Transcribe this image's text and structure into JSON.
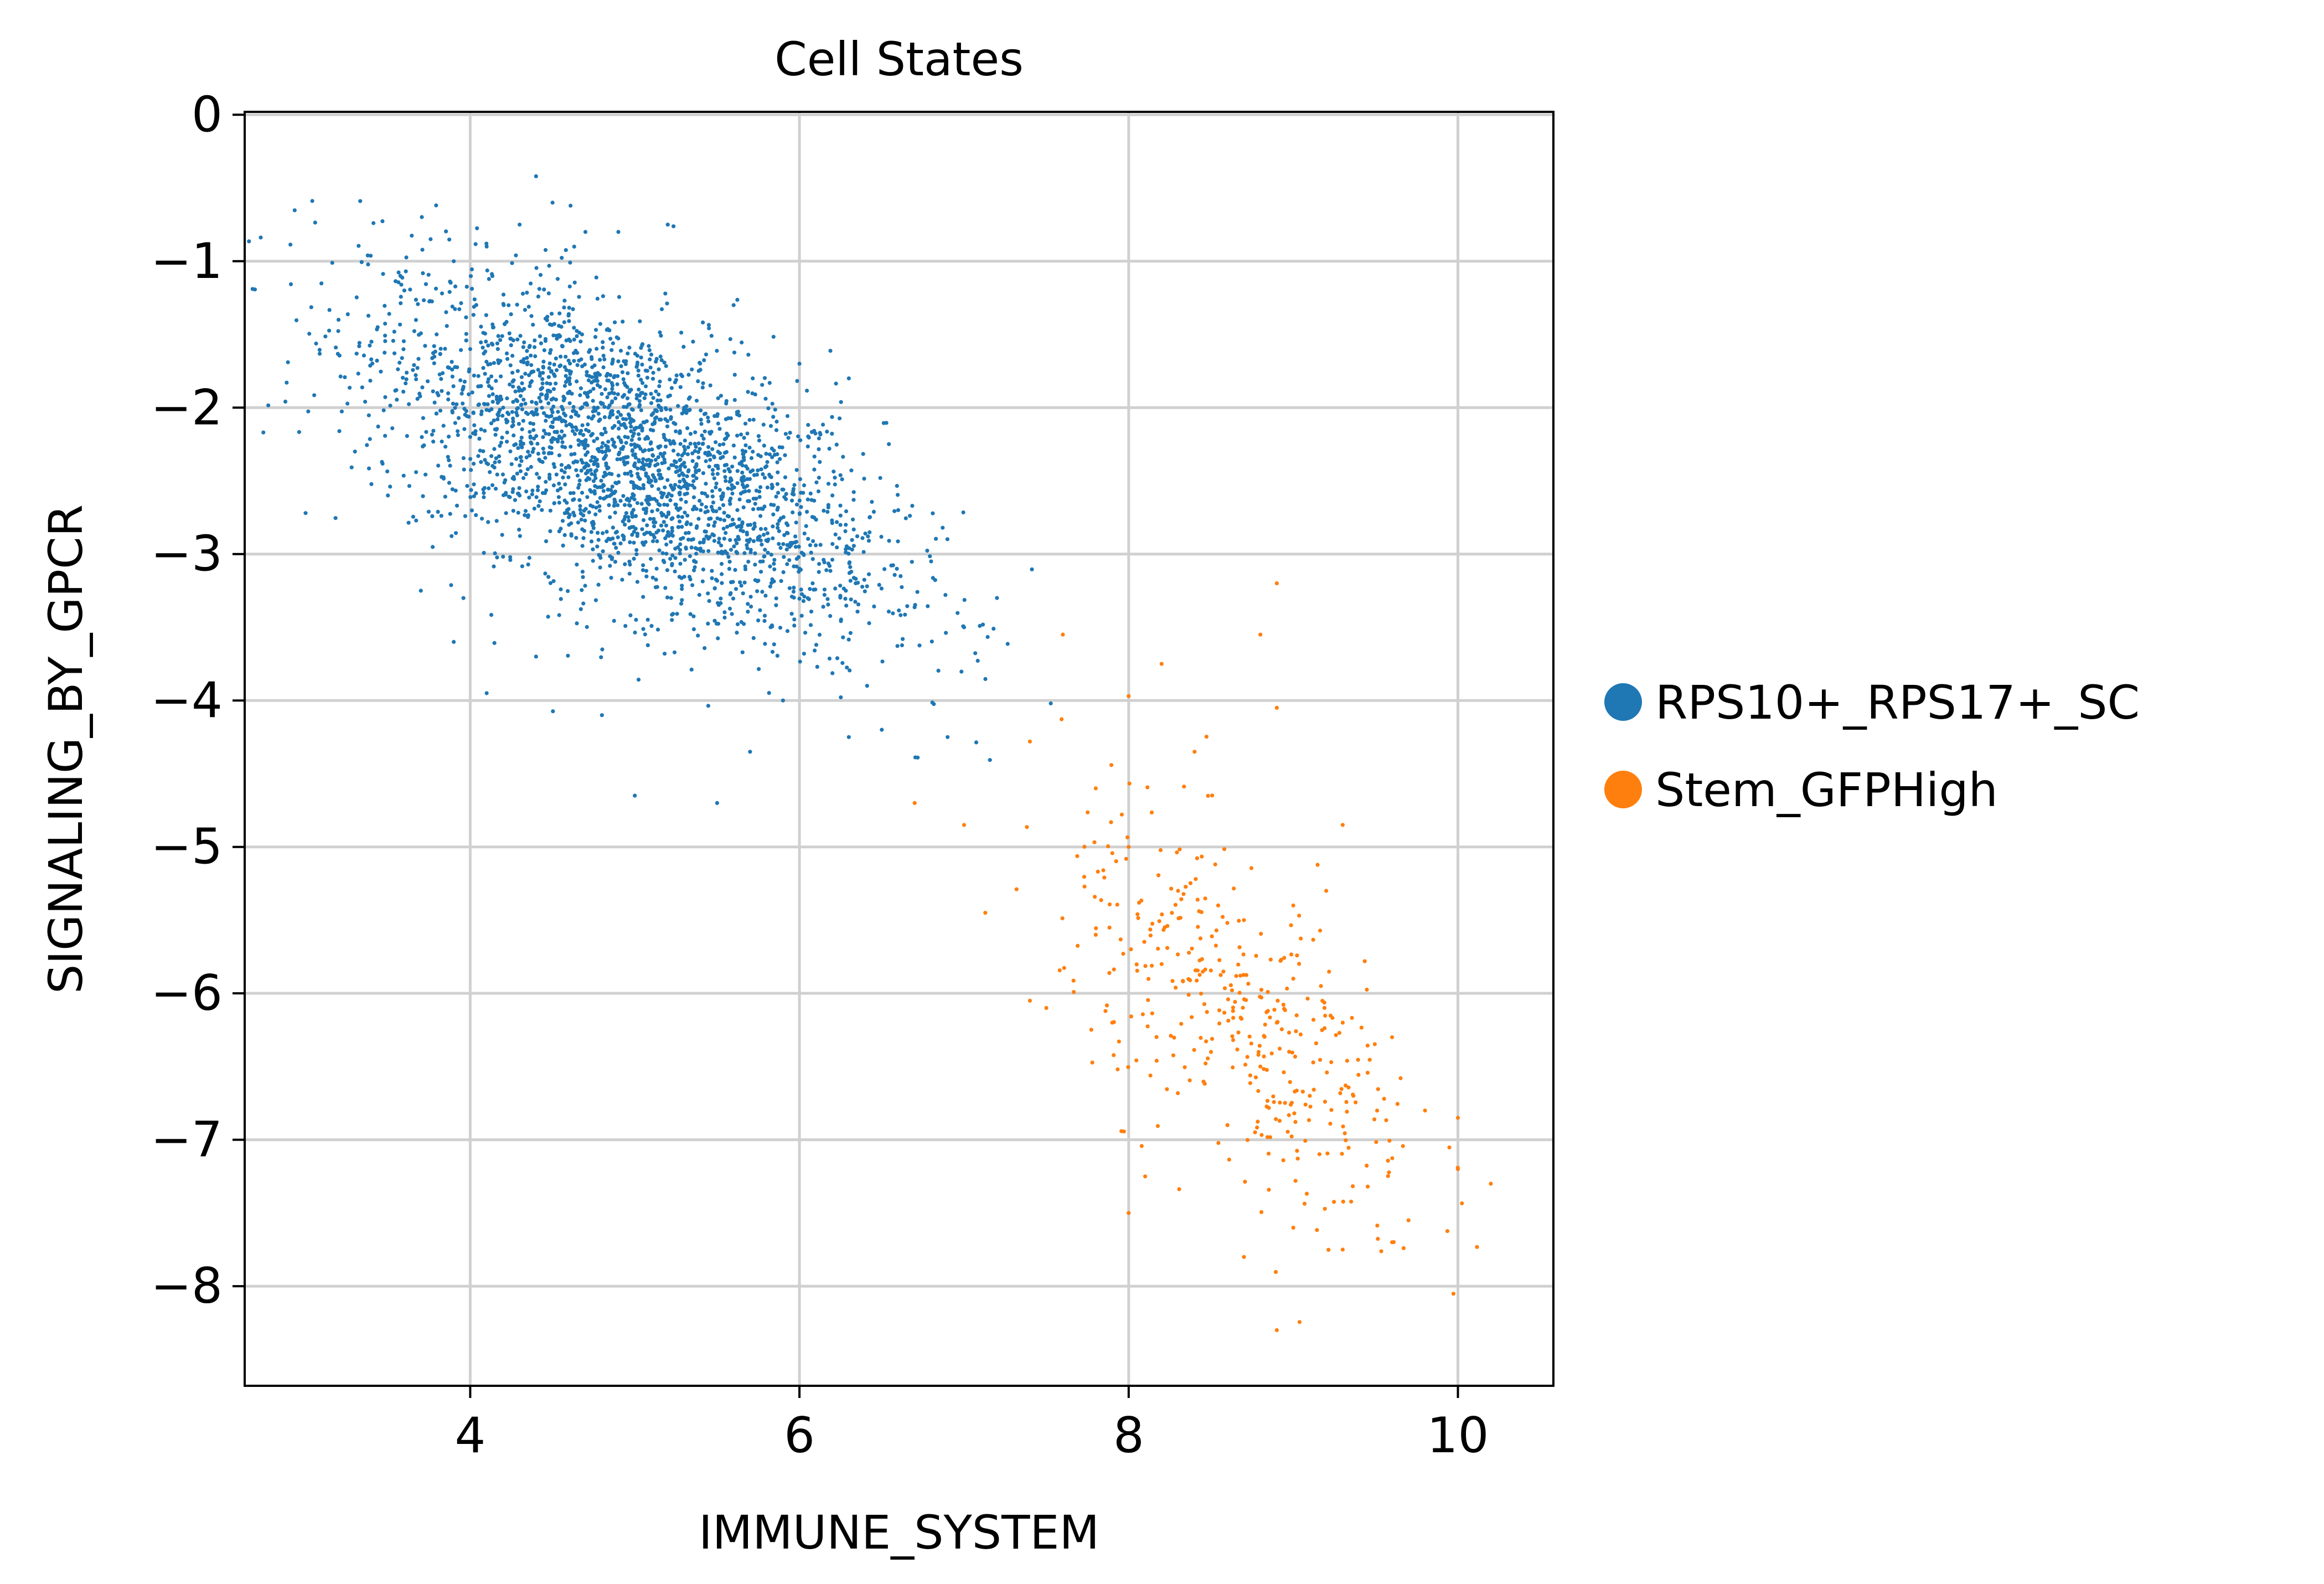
{
  "chart_data": {
    "type": "scatter",
    "title": "Cell States",
    "xlabel": "IMMUNE_SYSTEM",
    "ylabel": "SIGNALING_BY_GPCR",
    "xlim": [
      2.63,
      10.58
    ],
    "ylim": [
      -8.68,
      0.02
    ],
    "xticks": [
      4,
      6,
      8,
      10
    ],
    "yticks": [
      0,
      -1,
      -2,
      -3,
      -4,
      -5,
      -6,
      -7,
      -8
    ],
    "xtick_labels": [
      "4",
      "6",
      "8",
      "10"
    ],
    "ytick_labels": [
      "0",
      "−1",
      "−2",
      "−3",
      "−4",
      "−5",
      "−6",
      "−7",
      "−8"
    ],
    "grid": true,
    "legend_position": "outside-right",
    "series": [
      {
        "name": "RPS10+_RPS17+_SC",
        "color": "#1f77b4",
        "approx_count": 3000,
        "points": [
          [
            4.5,
            -0.6
          ],
          [
            4.7,
            -0.8
          ],
          [
            4.1,
            -0.9
          ],
          [
            4.3,
            -0.75
          ],
          [
            3.9,
            -1.0
          ],
          [
            4.4,
            -0.42
          ],
          [
            3.2,
            -1.4
          ],
          [
            3.4,
            -1.55
          ],
          [
            3.6,
            -1.2
          ],
          [
            3.3,
            -2.3
          ],
          [
            3.0,
            -2.72
          ],
          [
            3.5,
            -2.6
          ],
          [
            3.7,
            -3.25
          ],
          [
            3.9,
            -3.6
          ],
          [
            4.1,
            -3.95
          ],
          [
            4.4,
            -3.7
          ],
          [
            4.8,
            -4.1
          ],
          [
            5.0,
            -4.65
          ],
          [
            5.5,
            -4.7
          ],
          [
            5.7,
            -4.35
          ],
          [
            5.9,
            -4.0
          ],
          [
            6.3,
            -4.25
          ],
          [
            6.5,
            -4.2
          ],
          [
            6.9,
            -4.25
          ],
          [
            7.0,
            -3.5
          ],
          [
            7.2,
            -3.3
          ],
          [
            6.8,
            -3.05
          ],
          [
            6.6,
            -2.7
          ],
          [
            6.3,
            -1.8
          ],
          [
            6.0,
            -1.7
          ],
          [
            5.2,
            -0.75
          ],
          [
            5.6,
            -1.3
          ],
          [
            4.9,
            -0.8
          ],
          [
            4.0,
            -1.6
          ],
          [
            4.2,
            -2.0
          ],
          [
            4.5,
            -2.1
          ],
          [
            4.8,
            -2.3
          ],
          [
            5.1,
            -2.5
          ],
          [
            5.4,
            -2.7
          ],
          [
            5.7,
            -2.9
          ],
          [
            6.0,
            -3.1
          ],
          [
            4.3,
            -2.6
          ],
          [
            4.6,
            -2.8
          ],
          [
            4.0,
            -2.2
          ],
          [
            3.8,
            -1.9
          ],
          [
            5.3,
            -2.0
          ],
          [
            5.8,
            -2.4
          ],
          [
            6.2,
            -2.6
          ]
        ]
      },
      {
        "name": "Stem_GFPHigh",
        "color": "#ff7f0e",
        "approx_count": 400,
        "points": [
          [
            7.6,
            -3.55
          ],
          [
            8.8,
            -3.55
          ],
          [
            8.9,
            -3.2
          ],
          [
            8.9,
            -4.05
          ],
          [
            8.2,
            -3.75
          ],
          [
            8.0,
            -3.97
          ],
          [
            7.4,
            -4.28
          ],
          [
            7.0,
            -4.85
          ],
          [
            6.7,
            -4.7
          ],
          [
            7.8,
            -4.6
          ],
          [
            8.4,
            -4.35
          ],
          [
            9.3,
            -4.85
          ],
          [
            7.4,
            -6.05
          ],
          [
            7.5,
            -6.1
          ],
          [
            7.8,
            -5.6
          ],
          [
            8.0,
            -5.0
          ],
          [
            8.3,
            -5.3
          ],
          [
            8.7,
            -5.5
          ],
          [
            9.0,
            -5.9
          ],
          [
            9.3,
            -6.2
          ],
          [
            9.6,
            -6.3
          ],
          [
            9.8,
            -6.8
          ],
          [
            10.0,
            -6.85
          ],
          [
            10.2,
            -7.3
          ],
          [
            10.0,
            -7.2
          ],
          [
            9.7,
            -7.55
          ],
          [
            9.6,
            -7.7
          ],
          [
            9.3,
            -7.75
          ],
          [
            9.0,
            -7.6
          ],
          [
            8.9,
            -8.3
          ],
          [
            8.7,
            -7.8
          ],
          [
            8.0,
            -7.5
          ],
          [
            8.1,
            -7.25
          ],
          [
            8.6,
            -6.9
          ],
          [
            8.5,
            -6.4
          ],
          [
            8.8,
            -6.5
          ],
          [
            9.1,
            -6.7
          ],
          [
            7.9,
            -6.2
          ],
          [
            8.2,
            -5.8
          ],
          [
            9.0,
            -5.4
          ],
          [
            9.2,
            -5.3
          ],
          [
            8.9,
            -6.2
          ]
        ]
      }
    ]
  }
}
